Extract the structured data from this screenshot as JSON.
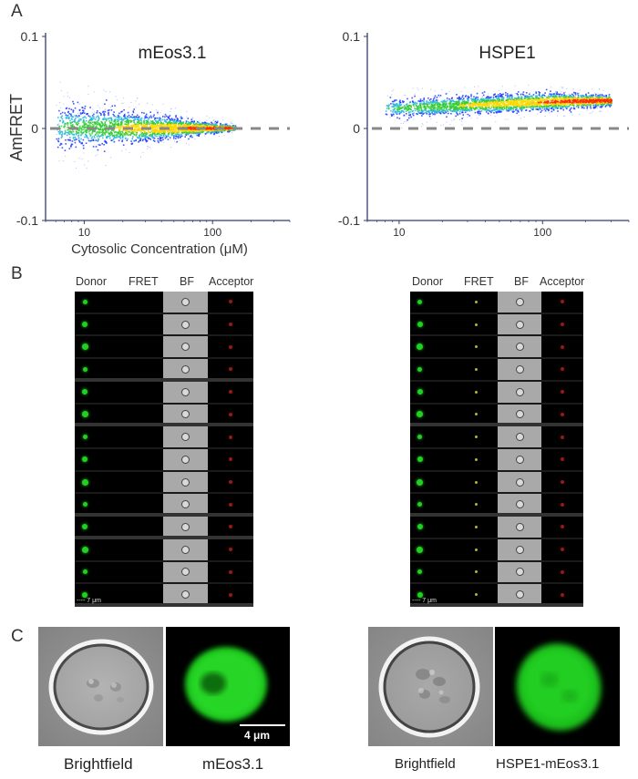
{
  "panel_labels": {
    "a": "A",
    "b": "B",
    "c": "C"
  },
  "chart_data": [
    {
      "type": "scatter",
      "title": "mEos3.1",
      "xlabel": "Cytosolic Concentration (μM)",
      "ylabel": "AmFRET",
      "x_scale": "log",
      "xlim": [
        5,
        400
      ],
      "ylim": [
        -0.1,
        0.1
      ],
      "x_ticks": [
        "10",
        "100"
      ],
      "y_ticks": [
        "0.1",
        "0",
        "-0.1"
      ],
      "reference_line": {
        "y": 0,
        "style": "dashed",
        "color": "#888888"
      },
      "density_colors": [
        "#1f3cff",
        "#27b8d8",
        "#33cc33",
        "#ffd700",
        "#ff2a00"
      ],
      "envelope": [
        {
          "x": 6,
          "y_low": -0.025,
          "y_high": 0.032,
          "y_center": 0.002
        },
        {
          "x": 20,
          "y_low": -0.018,
          "y_high": 0.024,
          "y_center": 0.001
        },
        {
          "x": 60,
          "y_low": -0.009,
          "y_high": 0.013,
          "y_center": 0.001
        },
        {
          "x": 150,
          "y_low": -0.002,
          "y_high": 0.004,
          "y_center": 0.001
        }
      ]
    },
    {
      "type": "scatter",
      "title": "HSPE1",
      "xlabel": "",
      "ylabel": "",
      "x_scale": "log",
      "xlim": [
        6,
        400
      ],
      "ylim": [
        -0.1,
        0.1
      ],
      "x_ticks": [
        "10",
        "100"
      ],
      "y_ticks": [
        "0.1",
        "0",
        "-0.1"
      ],
      "reference_line": {
        "y": 0,
        "style": "dashed",
        "color": "#888888"
      },
      "density_colors": [
        "#1f3cff",
        "#27b8d8",
        "#33cc33",
        "#ffd700",
        "#ff2a00"
      ],
      "envelope": [
        {
          "x": 8,
          "y_low": 0.012,
          "y_high": 0.036,
          "y_center": 0.022
        },
        {
          "x": 30,
          "y_low": 0.016,
          "y_high": 0.04,
          "y_center": 0.026
        },
        {
          "x": 120,
          "y_low": 0.02,
          "y_high": 0.041,
          "y_center": 0.03
        },
        {
          "x": 300,
          "y_low": 0.024,
          "y_high": 0.037,
          "y_center": 0.031
        }
      ]
    }
  ],
  "imaging_strips": [
    {
      "headers": [
        "Donor",
        "FRET",
        "BF",
        "Acceptor"
      ],
      "scale_label": "7 μm",
      "row_count": 14,
      "group_breaks": [
        3,
        5,
        9,
        10,
        13
      ],
      "fret_signal": false
    },
    {
      "headers": [
        "Donor",
        "FRET",
        "BF",
        "Acceptor"
      ],
      "scale_label": "7 μm",
      "row_count": 14,
      "group_breaks": [
        5,
        9,
        13
      ],
      "fret_signal": true
    }
  ],
  "micrographs": {
    "left": {
      "captions": [
        "Brightfield",
        "mEos3.1"
      ],
      "scale_label": "4 μm"
    },
    "right": {
      "captions": [
        "Brightfield",
        "HSPE1-mEos3.1"
      ]
    }
  },
  "colors": {
    "donor_green": "#22d022",
    "fret_yellow": "#b9b52a",
    "acceptor_red": "#a01515",
    "micrograph_green": "#22d922",
    "axis": "#333d6b"
  }
}
